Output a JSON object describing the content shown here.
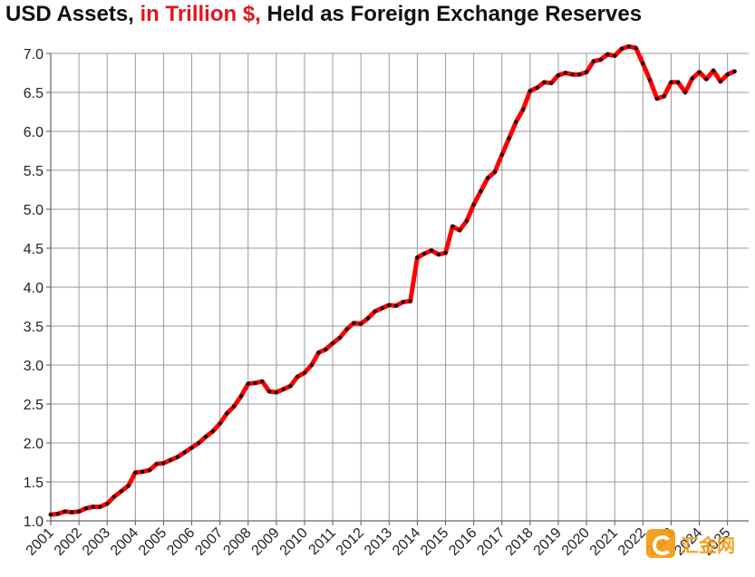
{
  "title": {
    "part1": "USD Assets, ",
    "accent": "in Trillion $,",
    "part2": " Held as Foreign Exchange Reserves",
    "accent_color": "#e3141b"
  },
  "watermark": {
    "text": "汇金网"
  },
  "chart_data": {
    "type": "line",
    "title": "USD Assets, in Trillion $, Held as Foreign Exchange Reserves",
    "xlabel": "",
    "ylabel": "",
    "ylim": [
      1.0,
      7.0
    ],
    "xlim": [
      2001,
      2025.75
    ],
    "yticks": [
      "1.0",
      "1.5",
      "2.0",
      "2.5",
      "3.0",
      "3.5",
      "4.0",
      "4.5",
      "5.0",
      "5.5",
      "6.0",
      "6.5",
      "7.0"
    ],
    "xticks": [
      "2001",
      "2002",
      "2003",
      "2004",
      "2005",
      "2006",
      "2007",
      "2008",
      "2009",
      "2010",
      "2011",
      "2012",
      "2013",
      "2014",
      "2015",
      "2016",
      "2017",
      "2018",
      "2019",
      "2020",
      "2021",
      "2022",
      "2023",
      "2024",
      "2025"
    ],
    "grid": true,
    "line_color": "#ff0000",
    "marker_color": "#111111",
    "series": [
      {
        "values": [
          [
            2001.0,
            1.08
          ],
          [
            2001.25,
            1.09
          ],
          [
            2001.5,
            1.12
          ],
          [
            2001.75,
            1.11
          ],
          [
            2002.0,
            1.12
          ],
          [
            2002.25,
            1.16
          ],
          [
            2002.5,
            1.18
          ],
          [
            2002.75,
            1.18
          ],
          [
            2003.0,
            1.22
          ],
          [
            2003.25,
            1.31
          ],
          [
            2003.5,
            1.38
          ],
          [
            2003.75,
            1.45
          ],
          [
            2004.0,
            1.62
          ],
          [
            2004.25,
            1.63
          ],
          [
            2004.5,
            1.65
          ],
          [
            2004.75,
            1.73
          ],
          [
            2005.0,
            1.74
          ],
          [
            2005.25,
            1.78
          ],
          [
            2005.5,
            1.82
          ],
          [
            2005.75,
            1.88
          ],
          [
            2006.0,
            1.94
          ],
          [
            2006.25,
            2.0
          ],
          [
            2006.5,
            2.08
          ],
          [
            2006.75,
            2.15
          ],
          [
            2007.0,
            2.25
          ],
          [
            2007.25,
            2.38
          ],
          [
            2007.5,
            2.47
          ],
          [
            2007.75,
            2.6
          ],
          [
            2008.0,
            2.76
          ],
          [
            2008.25,
            2.77
          ],
          [
            2008.5,
            2.79
          ],
          [
            2008.75,
            2.66
          ],
          [
            2009.0,
            2.65
          ],
          [
            2009.25,
            2.69
          ],
          [
            2009.5,
            2.73
          ],
          [
            2009.75,
            2.85
          ],
          [
            2010.0,
            2.9
          ],
          [
            2010.25,
            3.0
          ],
          [
            2010.5,
            3.16
          ],
          [
            2010.75,
            3.2
          ],
          [
            2011.0,
            3.28
          ],
          [
            2011.25,
            3.35
          ],
          [
            2011.5,
            3.46
          ],
          [
            2011.75,
            3.54
          ],
          [
            2012.0,
            3.53
          ],
          [
            2012.25,
            3.6
          ],
          [
            2012.5,
            3.69
          ],
          [
            2012.75,
            3.73
          ],
          [
            2013.0,
            3.77
          ],
          [
            2013.25,
            3.76
          ],
          [
            2013.5,
            3.81
          ],
          [
            2013.75,
            3.82
          ],
          [
            2014.0,
            4.38
          ],
          [
            2014.25,
            4.43
          ],
          [
            2014.5,
            4.47
          ],
          [
            2014.75,
            4.42
          ],
          [
            2015.0,
            4.44
          ],
          [
            2015.25,
            4.78
          ],
          [
            2015.5,
            4.73
          ],
          [
            2015.75,
            4.85
          ],
          [
            2016.0,
            5.06
          ],
          [
            2016.25,
            5.23
          ],
          [
            2016.5,
            5.4
          ],
          [
            2016.75,
            5.48
          ],
          [
            2017.0,
            5.7
          ],
          [
            2017.25,
            5.91
          ],
          [
            2017.5,
            6.12
          ],
          [
            2017.75,
            6.28
          ],
          [
            2018.0,
            6.52
          ],
          [
            2018.25,
            6.56
          ],
          [
            2018.5,
            6.63
          ],
          [
            2018.75,
            6.62
          ],
          [
            2019.0,
            6.72
          ],
          [
            2019.25,
            6.75
          ],
          [
            2019.5,
            6.73
          ],
          [
            2019.75,
            6.73
          ],
          [
            2020.0,
            6.76
          ],
          [
            2020.25,
            6.9
          ],
          [
            2020.5,
            6.92
          ],
          [
            2020.75,
            6.99
          ],
          [
            2021.0,
            6.97
          ],
          [
            2021.25,
            7.06
          ],
          [
            2021.5,
            7.09
          ],
          [
            2021.75,
            7.07
          ],
          [
            2022.0,
            6.87
          ],
          [
            2022.25,
            6.66
          ],
          [
            2022.5,
            6.42
          ],
          [
            2022.75,
            6.45
          ],
          [
            2023.0,
            6.63
          ],
          [
            2023.25,
            6.63
          ],
          [
            2023.5,
            6.5
          ],
          [
            2023.75,
            6.68
          ],
          [
            2024.0,
            6.76
          ],
          [
            2024.25,
            6.67
          ],
          [
            2024.5,
            6.78
          ],
          [
            2024.75,
            6.64
          ],
          [
            2025.0,
            6.73
          ],
          [
            2025.25,
            6.77
          ]
        ]
      }
    ]
  }
}
